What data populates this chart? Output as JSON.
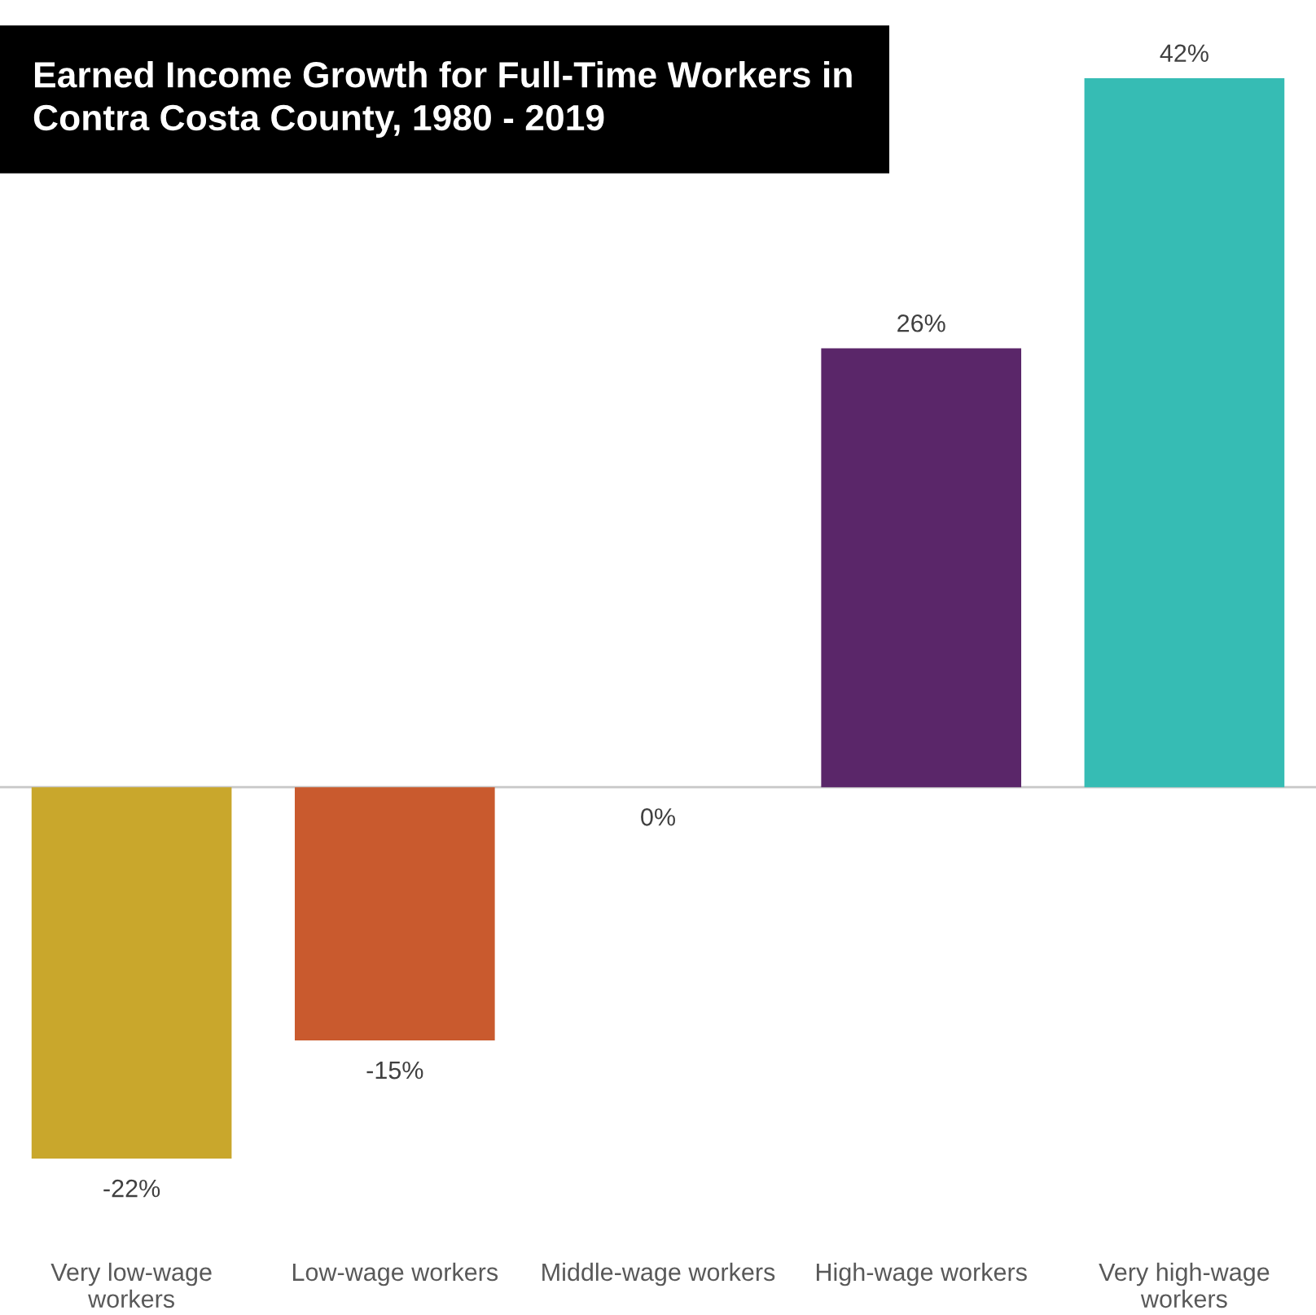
{
  "chart_data": {
    "type": "bar",
    "title": "Earned Income Growth for Full-Time Workers in\nContra Costa County, 1980 - 2019",
    "categories": [
      "Very low-wage\nworkers",
      "Low-wage workers",
      "Middle-wage workers",
      "High-wage workers",
      "Very high-wage\nworkers"
    ],
    "values": [
      -22,
      -15,
      0,
      26,
      42
    ],
    "value_labels": [
      "-22%",
      "-15%",
      "0%",
      "26%",
      "42%"
    ],
    "colors": [
      "#c9a72c",
      "#c95a2e",
      "#a04f9a",
      "#5a2669",
      "#36bcb4"
    ],
    "grid": false,
    "legend": false
  }
}
